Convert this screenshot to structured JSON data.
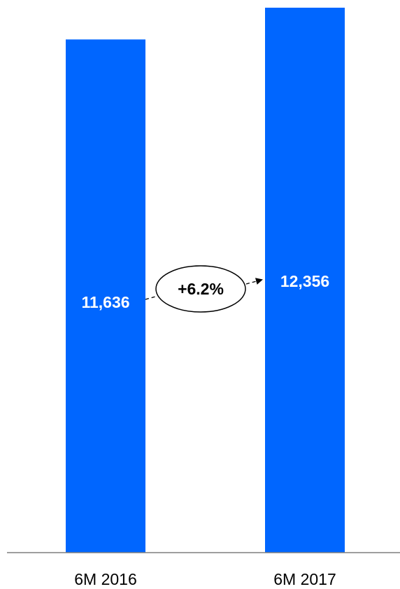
{
  "chart_data": {
    "type": "bar",
    "categories": [
      "6M 2016",
      "6M 2017"
    ],
    "values": [
      11636,
      12356
    ],
    "value_labels": [
      "11,636",
      "12,356"
    ],
    "title": "",
    "xlabel": "",
    "ylabel": "",
    "ylim": [
      0,
      12356
    ],
    "grid": false,
    "bar_color": "#0066FF",
    "axis_color": "#7f7f7f",
    "change_annotation": {
      "label": "+6.2%",
      "from_category": "6M 2016",
      "to_category": "6M 2017"
    }
  }
}
